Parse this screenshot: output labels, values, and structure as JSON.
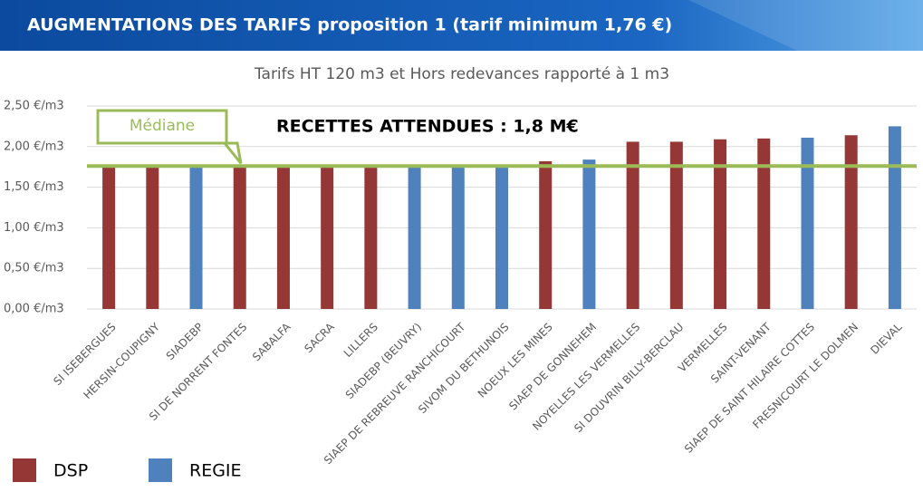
{
  "chart_data": {
    "type": "bar",
    "header": "AUGMENTATIONS DES TARIFS proposition 1 (tarif minimum 1,76 €)",
    "title": "Tarifs HT 120 m3 et Hors redevances rapporté à 1 m3",
    "annotation": "RECETTES ATTENDUES : 1,8 M€",
    "median_label": "Médiane",
    "median": 1.76,
    "median_color": "#9bbb59",
    "categories": [
      "SI ISEBERGUES",
      "HERSIN-COUPIGNY",
      "SIADEBP",
      "SI DE NORRENT FONTES",
      "SABALFA",
      "SACRA",
      "LILLERS",
      "SIADEBP (BEUVRY)",
      "SIAEP DE REBREUVE RANCHICOURT",
      "SIVOM DU BETHUNOIS",
      "NOEUX LES MINES",
      "SIAEP DE GONNEHEM",
      "NOYELLES LES VERMELLES",
      "SI DOUVRIN BILLY-BERCLAU",
      "VERMELLES",
      "SAINT-VENANT",
      "SIAEP DE SAINT HILAIRE COTTES",
      "FRESNICOURT LE DOLMEN",
      "DIEVAL"
    ],
    "series": [
      {
        "name": "DSP",
        "color": "#953735",
        "values": [
          1.76,
          1.76,
          null,
          1.76,
          1.76,
          1.76,
          1.76,
          null,
          null,
          null,
          1.82,
          null,
          2.06,
          2.06,
          2.09,
          2.1,
          null,
          2.14,
          null
        ]
      },
      {
        "name": "REGIE",
        "color": "#4f81bd",
        "values": [
          null,
          null,
          1.76,
          null,
          null,
          null,
          null,
          1.76,
          1.76,
          1.76,
          null,
          1.84,
          null,
          null,
          null,
          null,
          2.11,
          null,
          2.25
        ]
      }
    ],
    "ylim": [
      0,
      2.5
    ],
    "yticks": [
      {
        "value": 0,
        "label": "0,00 €/m3"
      },
      {
        "value": 0.5,
        "label": "0,50 €/m3"
      },
      {
        "value": 1,
        "label": "1,00 €/m3"
      },
      {
        "value": 1.5,
        "label": "1,50 €/m3"
      },
      {
        "value": 2,
        "label": "2,00 €/m3"
      },
      {
        "value": 2.5,
        "label": "2,50 €/m3"
      }
    ],
    "grid": true,
    "legend": "bottom-left"
  }
}
